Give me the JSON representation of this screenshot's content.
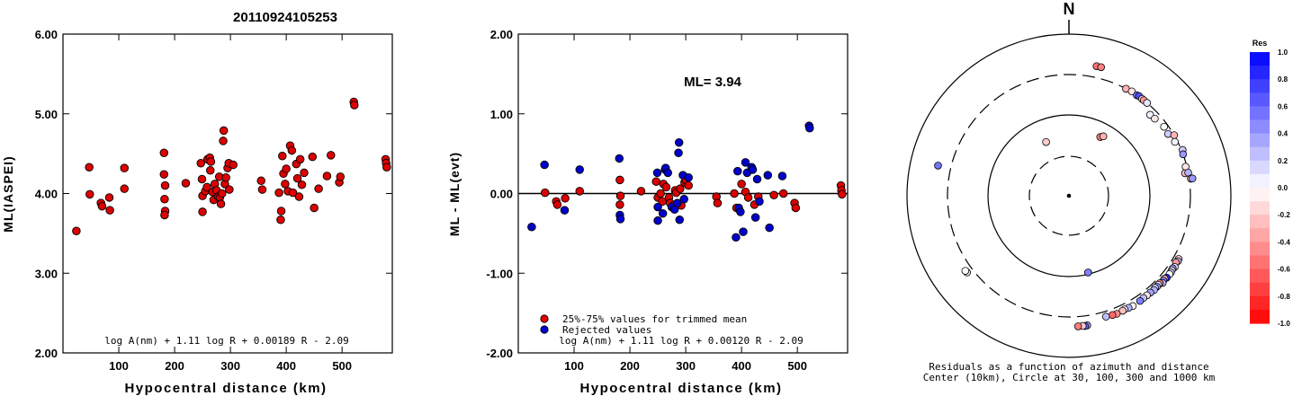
{
  "page_title": "20110924105253",
  "chart_data": [
    {
      "type": "scatter",
      "id": "ml-vs-distance",
      "title": "",
      "xlabel": "Hypocentral distance (km)",
      "ylabel": "ML(IASPEI)",
      "xlim": [
        0,
        590
      ],
      "ylim": [
        2.0,
        6.0
      ],
      "x_ticks": [
        "100",
        "200",
        "300",
        "400",
        "500"
      ],
      "y_ticks": [
        "2.00",
        "3.00",
        "4.00",
        "5.00",
        "6.00"
      ],
      "formula": "log A(nm) + 1.11 log R + 0.00189 R - 2.09",
      "marker_color": "#dd0000",
      "points": [
        [
          24,
          3.53
        ],
        [
          47,
          4.33
        ],
        [
          48,
          3.99
        ],
        [
          68,
          3.88
        ],
        [
          70,
          3.84
        ],
        [
          83,
          3.95
        ],
        [
          84,
          3.79
        ],
        [
          110,
          4.32
        ],
        [
          110,
          4.06
        ],
        [
          181,
          4.51
        ],
        [
          181,
          4.24
        ],
        [
          183,
          4.1
        ],
        [
          182,
          3.93
        ],
        [
          183,
          3.78
        ],
        [
          182,
          3.73
        ],
        [
          220,
          4.13
        ],
        [
          247,
          4.38
        ],
        [
          249,
          4.18
        ],
        [
          250,
          3.97
        ],
        [
          250,
          3.77
        ],
        [
          255,
          4.03
        ],
        [
          258,
          4.08
        ],
        [
          259,
          4.43
        ],
        [
          263,
          4.45
        ],
        [
          264,
          4.29
        ],
        [
          265,
          4.4
        ],
        [
          268,
          4.02
        ],
        [
          270,
          3.92
        ],
        [
          272,
          4.12
        ],
        [
          275,
          4.04
        ],
        [
          278,
          3.96
        ],
        [
          280,
          4.21
        ],
        [
          281,
          3.95
        ],
        [
          283,
          3.87
        ],
        [
          285,
          4.0
        ],
        [
          287,
          4.66
        ],
        [
          288,
          4.79
        ],
        [
          290,
          4.12
        ],
        [
          292,
          4.2
        ],
        [
          295,
          4.32
        ],
        [
          297,
          4.38
        ],
        [
          298,
          4.05
        ],
        [
          305,
          4.36
        ],
        [
          355,
          4.16
        ],
        [
          357,
          4.05
        ],
        [
          387,
          4.01
        ],
        [
          390,
          3.67
        ],
        [
          391,
          3.78
        ],
        [
          393,
          4.47
        ],
        [
          395,
          4.25
        ],
        [
          398,
          4.12
        ],
        [
          400,
          4.31
        ],
        [
          403,
          4.03
        ],
        [
          407,
          4.6
        ],
        [
          410,
          4.54
        ],
        [
          412,
          4.01
        ],
        [
          418,
          4.37
        ],
        [
          420,
          4.19
        ],
        [
          423,
          3.96
        ],
        [
          425,
          4.43
        ],
        [
          428,
          4.11
        ],
        [
          432,
          4.26
        ],
        [
          447,
          4.46
        ],
        [
          450,
          3.82
        ],
        [
          458,
          4.06
        ],
        [
          473,
          4.22
        ],
        [
          480,
          4.48
        ],
        [
          495,
          4.14
        ],
        [
          497,
          4.21
        ],
        [
          521,
          5.15
        ],
        [
          522,
          5.11
        ],
        [
          578,
          4.43
        ],
        [
          579,
          4.38
        ],
        [
          580,
          4.33
        ]
      ]
    },
    {
      "type": "scatter",
      "id": "residual-vs-distance",
      "title": "",
      "xlabel": "Hypocentral distance (km)",
      "ylabel": "ML - ML(evt)",
      "xlim": [
        0,
        590
      ],
      "ylim": [
        -2.0,
        2.0
      ],
      "x_ticks": [
        "100",
        "200",
        "300",
        "400",
        "500"
      ],
      "y_ticks": [
        "-2.00",
        "-1.00",
        "0.00",
        "1.00",
        "2.00"
      ],
      "annotation": "ML= 3.94",
      "formula": "log A(nm) + 1.11 log R + 0.00120 R - 2.09",
      "legend": [
        {
          "label": "25%-75% values for trimmed mean",
          "color": "#dd0000"
        },
        {
          "label": "Rejected values",
          "color": "#0000cc"
        }
      ],
      "used_points": [
        [
          48,
          0.01
        ],
        [
          68,
          -0.1
        ],
        [
          70,
          -0.14
        ],
        [
          84,
          -0.06
        ],
        [
          110,
          0.03
        ],
        [
          182,
          0.17
        ],
        [
          183,
          -0.03
        ],
        [
          182,
          -0.14
        ],
        [
          220,
          0.03
        ],
        [
          247,
          0.15
        ],
        [
          250,
          -0.05
        ],
        [
          255,
          0.0
        ],
        [
          258,
          -0.1
        ],
        [
          260,
          0.12
        ],
        [
          265,
          0.08
        ],
        [
          270,
          -0.05
        ],
        [
          272,
          -0.12
        ],
        [
          278,
          -0.15
        ],
        [
          281,
          0.04
        ],
        [
          283,
          0.01
        ],
        [
          290,
          0.06
        ],
        [
          292,
          -0.15
        ],
        [
          298,
          0.14
        ],
        [
          300,
          0.17
        ],
        [
          305,
          0.1
        ],
        [
          355,
          -0.04
        ],
        [
          357,
          -0.12
        ],
        [
          387,
          0.0
        ],
        [
          391,
          -0.18
        ],
        [
          400,
          0.12
        ],
        [
          407,
          0.02
        ],
        [
          412,
          -0.05
        ],
        [
          423,
          -0.14
        ],
        [
          430,
          -0.04
        ],
        [
          458,
          -0.02
        ],
        [
          475,
          0.0
        ],
        [
          495,
          -0.12
        ],
        [
          497,
          -0.18
        ],
        [
          578,
          0.1
        ],
        [
          579,
          0.04
        ],
        [
          580,
          -0.01
        ]
      ],
      "rejected_points": [
        [
          24,
          -0.42
        ],
        [
          47,
          0.36
        ],
        [
          83,
          -0.21
        ],
        [
          110,
          0.3
        ],
        [
          181,
          0.44
        ],
        [
          182,
          -0.27
        ],
        [
          183,
          -0.32
        ],
        [
          249,
          0.26
        ],
        [
          250,
          -0.17
        ],
        [
          250,
          -0.34
        ],
        [
          259,
          -0.25
        ],
        [
          263,
          0.3
        ],
        [
          264,
          0.32
        ],
        [
          268,
          0.26
        ],
        [
          275,
          -0.17
        ],
        [
          280,
          -0.2
        ],
        [
          285,
          -0.12
        ],
        [
          287,
          0.51
        ],
        [
          288,
          0.64
        ],
        [
          289,
          -0.33
        ],
        [
          295,
          0.23
        ],
        [
          297,
          -0.07
        ],
        [
          305,
          0.2
        ],
        [
          390,
          -0.55
        ],
        [
          393,
          0.28
        ],
        [
          395,
          -0.18
        ],
        [
          398,
          -0.23
        ],
        [
          403,
          -0.48
        ],
        [
          407,
          0.39
        ],
        [
          410,
          0.26
        ],
        [
          418,
          0.33
        ],
        [
          420,
          0.3
        ],
        [
          425,
          -0.3
        ],
        [
          428,
          0.18
        ],
        [
          432,
          -0.1
        ],
        [
          447,
          0.23
        ],
        [
          450,
          -0.43
        ],
        [
          473,
          0.22
        ],
        [
          521,
          0.85
        ],
        [
          522,
          0.82
        ]
      ]
    },
    {
      "type": "scatter",
      "id": "azimuth-residuals",
      "north_label": "N",
      "caption_line1": "Residuals as a function of azimuth and distance",
      "caption_line2": "Center (10km), Circle at 30, 100, 300 and 1000 km",
      "colorbar_title": "Res",
      "colorbar_ticks": [
        "1.0",
        "0.8",
        "0.6",
        "0.4",
        "0.2",
        "0.0",
        "-0.2",
        "-0.4",
        "-0.6",
        "-0.8",
        "-1.0"
      ],
      "colorbar_range": [
        -1.0,
        1.0
      ],
      "positive_color": "#0000ff",
      "negative_color": "#ff0000",
      "rings_km": [
        30,
        100,
        300,
        1000
      ],
      "stations": [
        {
          "az": 12,
          "dist": 420,
          "res": -0.55
        },
        {
          "az": 14,
          "dist": 420,
          "res": -0.5
        },
        {
          "az": 28,
          "dist": 300,
          "res": -0.3
        },
        {
          "az": 31,
          "dist": 305,
          "res": -0.1
        },
        {
          "az": 34,
          "dist": 300,
          "res": 0.5
        },
        {
          "az": 35,
          "dist": 305,
          "res": 0.7
        },
        {
          "az": 37,
          "dist": 300,
          "res": -0.2
        },
        {
          "az": 38,
          "dist": 300,
          "res": -0.4
        },
        {
          "az": 40,
          "dist": 300,
          "res": 0.1
        },
        {
          "az": 45,
          "dist": 250,
          "res": 0.05
        },
        {
          "az": 48,
          "dist": 255,
          "res": -0.1
        },
        {
          "az": 54,
          "dist": 270,
          "res": 0.0
        },
        {
          "az": 58,
          "dist": 265,
          "res": 0.2
        },
        {
          "az": 60,
          "dist": 300,
          "res": -0.3
        },
        {
          "az": 63,
          "dist": 280,
          "res": 0.05
        },
        {
          "az": 68,
          "dist": 310,
          "res": 0.2
        },
        {
          "az": 70,
          "dist": 300,
          "res": 0.4
        },
        {
          "az": 76,
          "dist": 290,
          "res": -0.1
        },
        {
          "az": 79,
          "dist": 275,
          "res": -0.25
        },
        {
          "az": 79,
          "dist": 300,
          "res": 0.3
        },
        {
          "az": 82,
          "dist": 315,
          "res": -0.25
        },
        {
          "az": 82,
          "dist": 330,
          "res": 0.4
        },
        {
          "az": 120,
          "dist": 350,
          "res": -0.2
        },
        {
          "az": 121,
          "dist": 355,
          "res": 0.3
        },
        {
          "az": 122,
          "dist": 345,
          "res": -0.4
        },
        {
          "az": 124,
          "dist": 360,
          "res": 0.1
        },
        {
          "az": 125,
          "dist": 350,
          "res": 0.45
        },
        {
          "az": 126,
          "dist": 355,
          "res": -0.1
        },
        {
          "az": 127,
          "dist": 360,
          "res": 0.2
        },
        {
          "az": 128,
          "dist": 360,
          "res": 0.0
        },
        {
          "az": 130,
          "dist": 360,
          "res": 0.85
        },
        {
          "az": 131,
          "dist": 350,
          "res": -0.3
        },
        {
          "az": 132,
          "dist": 355,
          "res": 0.5
        },
        {
          "az": 133,
          "dist": 365,
          "res": 0.3
        },
        {
          "az": 134,
          "dist": 345,
          "res": -0.5
        },
        {
          "az": 135,
          "dist": 345,
          "res": 0.1
        },
        {
          "az": 136,
          "dist": 350,
          "res": 0.4
        },
        {
          "az": 137,
          "dist": 345,
          "res": 0.2
        },
        {
          "az": 138,
          "dist": 355,
          "res": 0.3
        },
        {
          "az": 140,
          "dist": 350,
          "res": 0.35
        },
        {
          "az": 142,
          "dist": 350,
          "res": -0.1
        },
        {
          "az": 144,
          "dist": 350,
          "res": 0.25
        },
        {
          "az": 146,
          "dist": 355,
          "res": 0.5
        },
        {
          "az": 150,
          "dist": 360,
          "res": 0.0
        },
        {
          "az": 152,
          "dist": 355,
          "res": 0.3
        },
        {
          "az": 154,
          "dist": 350,
          "res": 0.05
        },
        {
          "az": 155,
          "dist": 355,
          "res": -0.25
        },
        {
          "az": 158,
          "dist": 360,
          "res": -0.45
        },
        {
          "az": 160,
          "dist": 355,
          "res": -0.6
        },
        {
          "az": 163,
          "dist": 350,
          "res": 0.25
        },
        {
          "az": 166,
          "dist": 95,
          "res": 0.5
        },
        {
          "az": 172,
          "dist": 400,
          "res": 0.4
        },
        {
          "az": 173,
          "dist": 405,
          "res": 0.6
        },
        {
          "az": 174,
          "dist": 400,
          "res": -0.2
        },
        {
          "az": 176,
          "dist": 400,
          "res": -0.5
        },
        {
          "az": 233,
          "dist": 360,
          "res": -0.1
        },
        {
          "az": 234,
          "dist": 365,
          "res": 0.0
        },
        {
          "az": 283,
          "dist": 440,
          "res": 0.55
        },
        {
          "az": 337,
          "dist": 52,
          "res": -0.2
        },
        {
          "az": 28,
          "dist": 66,
          "res": -0.5
        },
        {
          "az": 30,
          "dist": 70,
          "res": -0.3
        }
      ]
    }
  ]
}
